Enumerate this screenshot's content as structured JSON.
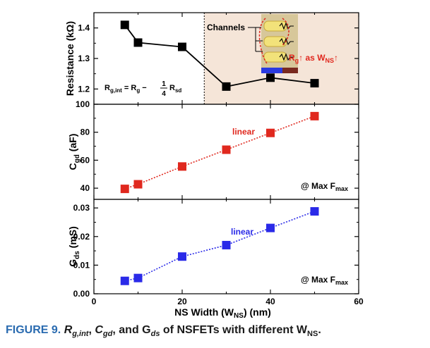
{
  "chart_data": [
    {
      "type": "line",
      "ylabel_main": "Resistance (k",
      "ylabel_unit": "Ω",
      "ylabel_end": ")",
      "ylim": [
        1.15,
        1.45
      ],
      "yticks": [
        "1.2",
        "1.3",
        "1.4"
      ],
      "xlim": [
        0,
        60
      ],
      "series": [
        {
          "x": [
            7,
            10,
            20,
            30,
            40,
            50
          ],
          "y": [
            1.41,
            1.352,
            1.338,
            1.208,
            1.237,
            1.219
          ],
          "color": "#000000",
          "marker": "square",
          "line": "solid"
        }
      ],
      "shaded_region": {
        "x_from": 25,
        "x_to": 60,
        "color": "#f5e5d8"
      },
      "equation": {
        "lhs": "R",
        "lhs_sub": "g,int",
        "eq": " = R",
        "rhs_sub": "g",
        "minus": " − ",
        "num": "1",
        "den": "4",
        "tail": "R",
        "tail_sub": "sd"
      },
      "inset": {
        "label": "Channels",
        "rg_text": "R",
        "rg_sub": "g",
        "arrow_text": "↑ as W",
        "arrow_sub": "NS",
        "arrow_end": "↑"
      }
    },
    {
      "type": "line",
      "ylabel_main": "C",
      "ylabel_sub": "gd",
      "ylabel_end": " (aF)",
      "ylim": [
        32,
        100
      ],
      "yticks": [
        "40",
        "60",
        "80",
        "100"
      ],
      "xlim": [
        0,
        60
      ],
      "series": [
        {
          "name": "linear",
          "x": [
            7,
            10,
            20,
            30,
            40,
            50
          ],
          "y": [
            39.5,
            42.8,
            55.5,
            67.5,
            79.5,
            91.5
          ],
          "color": "#e0281e",
          "marker": "square",
          "line": "dotted"
        }
      ],
      "annotation_main": "@ Max F",
      "annotation_sub": "max"
    },
    {
      "type": "line",
      "ylabel_main": "G",
      "ylabel_sub": "ds",
      "ylabel_end": " (mS)",
      "ylim": [
        0,
        0.033
      ],
      "yticks": [
        "0.00",
        "0.01",
        "0.02",
        "0.03"
      ],
      "xlim": [
        0,
        60
      ],
      "xticks": [
        "0",
        "20",
        "40",
        "60"
      ],
      "xlabel_main": "NS Width (W",
      "xlabel_sub": "NS",
      "xlabel_end": ") (nm)",
      "series": [
        {
          "name": "linear",
          "x": [
            7,
            10,
            20,
            30,
            40,
            50
          ],
          "y": [
            0.0045,
            0.0055,
            0.013,
            0.017,
            0.023,
            0.0288
          ],
          "color": "#2a2ae8",
          "marker": "square",
          "line": "dotted"
        }
      ],
      "annotation_main": "@ Max F",
      "annotation_sub": "max"
    }
  ],
  "caption": {
    "label": "FIGURE 9.",
    "r": "R",
    "r_sub": "g,int",
    "sep1": ", ",
    "c": "C",
    "c_sub": "gd",
    "mid": ", and G",
    "g_sub": "ds",
    "tail": " of NSFETs with different W",
    "w_sub": "NS",
    "end": "."
  }
}
